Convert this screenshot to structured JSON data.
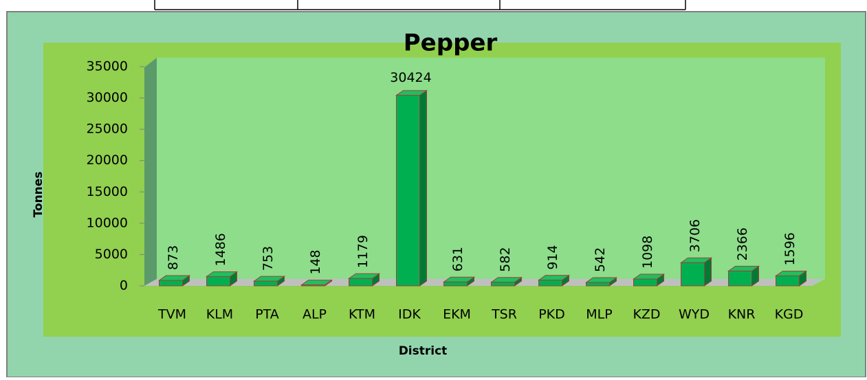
{
  "chart_data": {
    "type": "bar",
    "title": "Pepper",
    "x_label": "District",
    "y_label": "Tonnes",
    "categories": [
      "TVM",
      "KLM",
      "PTA",
      "ALP",
      "KTM",
      "IDK",
      "EKM",
      "TSR",
      "PKD",
      "MLP",
      "KZD",
      "WYD",
      "KNR",
      "KGD"
    ],
    "values": [
      873,
      1486,
      753,
      148,
      1179,
      30424,
      631,
      582,
      914,
      542,
      1098,
      3706,
      2366,
      1596
    ],
    "color": "#00b050",
    "ylim": [
      0,
      35000
    ],
    "yticks": [
      0,
      5000,
      10000,
      15000,
      20000,
      25000,
      30000,
      35000
    ]
  }
}
